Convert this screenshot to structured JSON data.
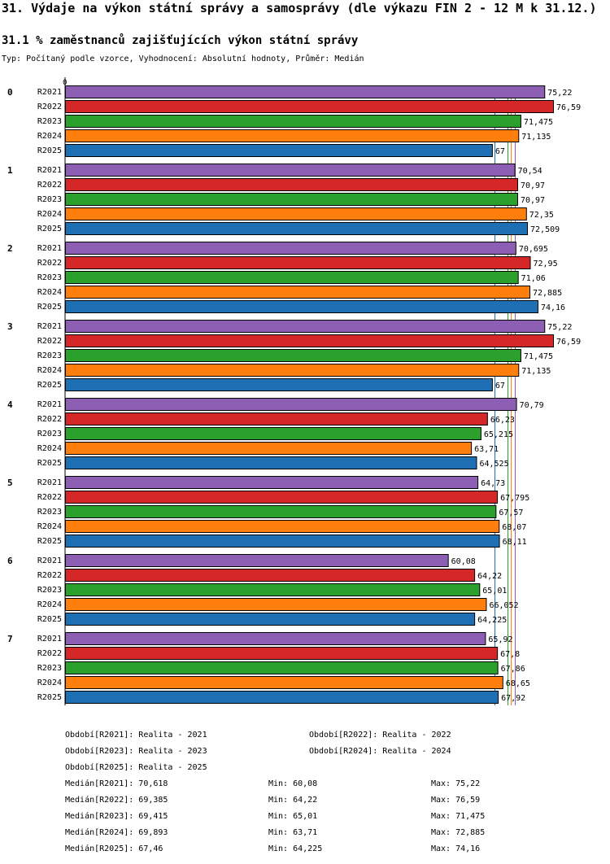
{
  "header": {
    "title": "31. Výdaje na výkon státní správy a samosprávy (dle výkazu FIN 2 - 12 M k 31.12.)",
    "subtitle": "31.1 % zaměstnanců zajišťujících výkon státní správy",
    "info": "Typ: Počítaný podle vzorce, Vyhodnocení: Absolutní hodnoty, Průměr: Medián"
  },
  "chart_data": {
    "type": "bar",
    "orientation": "horizontal",
    "axis_zero_label": "0",
    "xlim": [
      0,
      76.59
    ],
    "groups": [
      "0",
      "1",
      "2",
      "3",
      "4",
      "5",
      "6",
      "7"
    ],
    "series": [
      {
        "name": "R2021",
        "color": "#8c5fb5",
        "values": [
          "75,22",
          "70,54",
          "70,695",
          "75,22",
          "70,79",
          "64,73",
          "60,08",
          "65,92"
        ]
      },
      {
        "name": "R2022",
        "color": "#d62728",
        "values": [
          "76,59",
          "70,97",
          "72,95",
          "76,59",
          "66,23",
          "67,795",
          "64,22",
          "67,8"
        ]
      },
      {
        "name": "R2023",
        "color": "#2ca02c",
        "values": [
          "71,475",
          "70,97",
          "71,06",
          "71,475",
          "65,215",
          "67,57",
          "65,01",
          "67,86"
        ]
      },
      {
        "name": "R2024",
        "color": "#ff7f0e",
        "values": [
          "71,135",
          "72,35",
          "72,885",
          "71,135",
          "63,71",
          "68,07",
          "66,052",
          "68,65"
        ]
      },
      {
        "name": "R2025",
        "color": "#1f6fb4",
        "values": [
          "67",
          "72,509",
          "74,16",
          "67",
          "64,525",
          "68,11",
          "64,225",
          "67,92"
        ]
      }
    ],
    "median_lines": [
      {
        "series": "R2021",
        "value": 70.618
      },
      {
        "series": "R2022",
        "value": 69.385
      },
      {
        "series": "R2023",
        "value": 69.415
      },
      {
        "series": "R2024",
        "value": 69.893
      },
      {
        "series": "R2025",
        "value": 67.46
      }
    ]
  },
  "legend": {
    "periods": [
      "Období[R2021]: Realita - 2021",
      "Období[R2022]: Realita - 2022",
      "Období[R2023]: Realita - 2023",
      "Období[R2024]: Realita - 2024",
      "Období[R2025]: Realita - 2025"
    ],
    "stats": [
      {
        "median": "Medián[R2021]: 70,618",
        "min": "Min: 60,08",
        "max": "Max: 75,22"
      },
      {
        "median": "Medián[R2022]: 69,385",
        "min": "Min: 64,22",
        "max": "Max: 76,59"
      },
      {
        "median": "Medián[R2023]: 69,415",
        "min": "Min: 65,01",
        "max": "Max: 71,475"
      },
      {
        "median": "Medián[R2024]: 69,893",
        "min": "Min: 63,71",
        "max": "Max: 72,885"
      },
      {
        "median": "Medián[R2025]: 67,46",
        "min": "Min: 64,225",
        "max": "Max: 74,16"
      }
    ]
  }
}
